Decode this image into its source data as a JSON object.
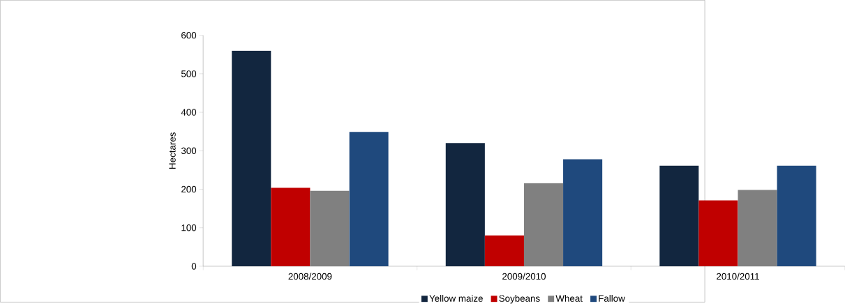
{
  "chart_data": {
    "type": "bar",
    "ylabel": "Hectares",
    "categories": [
      "2008/2009",
      "2009/2010",
      "2010/2011"
    ],
    "series": [
      {
        "name": "Yellow maize",
        "color": "#12263f",
        "values": [
          560,
          320,
          261
        ]
      },
      {
        "name": "Soybeans",
        "color": "#c00000",
        "values": [
          204,
          80,
          171
        ]
      },
      {
        "name": "Wheat",
        "color": "#808080",
        "values": [
          196,
          216,
          198
        ]
      },
      {
        "name": "Fallow",
        "color": "#1f497d",
        "values": [
          349,
          278,
          261
        ]
      }
    ],
    "ylim": [
      0,
      600
    ],
    "yticks": [
      0,
      100,
      200,
      300,
      400,
      500,
      600
    ],
    "grid": false,
    "legend": "bottom"
  }
}
